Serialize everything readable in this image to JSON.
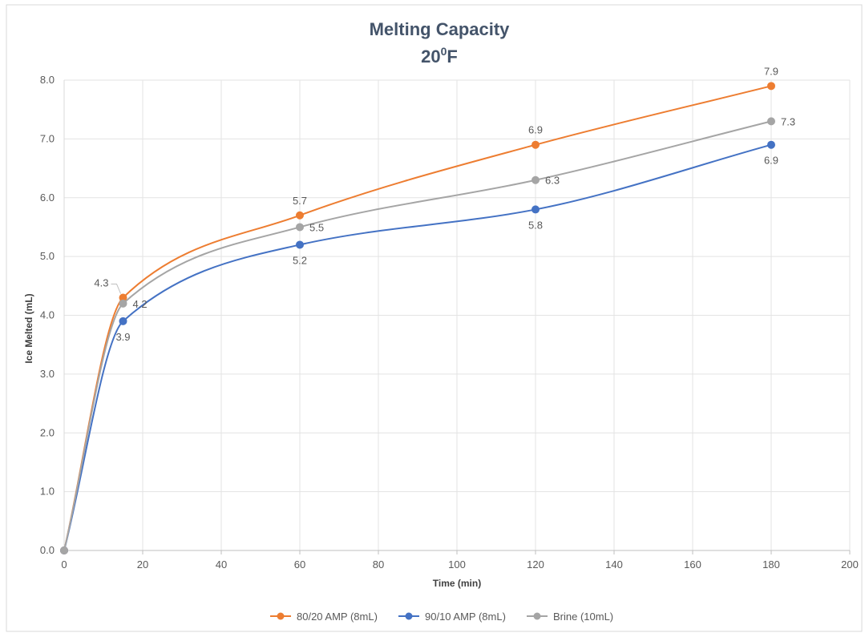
{
  "chart_data": {
    "type": "line",
    "title": "Melting Capacity",
    "subtitle": "20",
    "subtitle_superscript": "0",
    "subtitle_suffix": "F",
    "xlabel": "Time (min)",
    "ylabel": "Ice Melted (mL)",
    "xlim": [
      0,
      200
    ],
    "ylim": [
      0,
      8.0
    ],
    "x_ticks": [
      0,
      20,
      40,
      60,
      80,
      100,
      120,
      140,
      160,
      180,
      200
    ],
    "y_ticks": [
      "0.0",
      "1.0",
      "2.0",
      "3.0",
      "4.0",
      "5.0",
      "6.0",
      "7.0",
      "8.0"
    ],
    "grid": true,
    "smooth": true,
    "legend_position": "bottom",
    "series": [
      {
        "name": "80/20 AMP (8mL)",
        "color": "#ed7d31",
        "points": [
          [
            0,
            0.0
          ],
          [
            15,
            4.3
          ],
          [
            60,
            5.7
          ],
          [
            120,
            6.9
          ],
          [
            180,
            7.9
          ]
        ],
        "labels": [
          "",
          "4.3",
          "5.7",
          "6.9",
          "7.9"
        ]
      },
      {
        "name": "90/10 AMP (8mL)",
        "color": "#4472c4",
        "points": [
          [
            0,
            0.0
          ],
          [
            15,
            3.9
          ],
          [
            60,
            5.2
          ],
          [
            120,
            5.8
          ],
          [
            180,
            6.9
          ]
        ],
        "labels": [
          "",
          "3.9",
          "5.2",
          "5.8",
          "6.9"
        ]
      },
      {
        "name": "Brine (10mL)",
        "color": "#a5a5a5",
        "points": [
          [
            0,
            0.0
          ],
          [
            15,
            4.2
          ],
          [
            60,
            5.5
          ],
          [
            120,
            6.3
          ],
          [
            180,
            7.3
          ]
        ],
        "labels": [
          "",
          "4.2",
          "5.5",
          "6.3",
          "7.3"
        ]
      }
    ]
  }
}
